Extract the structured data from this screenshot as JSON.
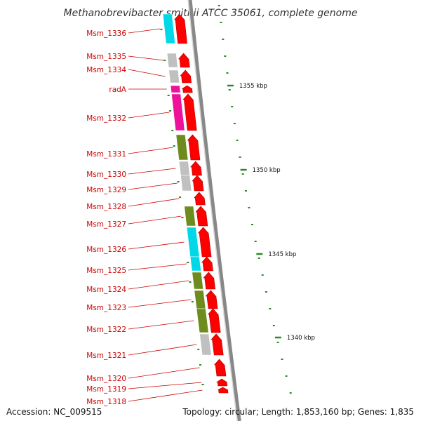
{
  "title": "Methanobrevibacter smithii ATCC 35061, complete genome",
  "accession_text": "Accession: NC_009515",
  "topology_text": "Topology: circular; Length: 1,853,160 bp; Genes: 1,835",
  "colors": {
    "forward": "#ff0000",
    "cyan": "#00d8e8",
    "gray": "#c0c0c0",
    "magenta": "#ee1199",
    "olive": "#6e8b1e",
    "label": "#cc0000",
    "backbone": "#888888",
    "tick": "#2a8a2a"
  },
  "ticks": [
    {
      "label": "1355 kbp",
      "kbp": 1355
    },
    {
      "label": "1350 kbp",
      "kbp": 1350
    },
    {
      "label": "1345 kbp",
      "kbp": 1345
    },
    {
      "label": "1340 kbp",
      "kbp": 1340
    }
  ],
  "genes": [
    {
      "name": "Msm_1336",
      "cat": "cyan"
    },
    {
      "name": "Msm_1335",
      "cat": "gray"
    },
    {
      "name": "Msm_1334",
      "cat": "gray"
    },
    {
      "name": "radA",
      "cat": "magenta"
    },
    {
      "name": "Msm_1332",
      "cat": "magenta"
    },
    {
      "name": "Msm_1331",
      "cat": "olive"
    },
    {
      "name": "Msm_1330",
      "cat": "gray"
    },
    {
      "name": "Msm_1329",
      "cat": "gray"
    },
    {
      "name": "Msm_1328",
      "cat": "none"
    },
    {
      "name": "Msm_1327",
      "cat": "olive"
    },
    {
      "name": "Msm_1326",
      "cat": "cyan"
    },
    {
      "name": "Msm_1325",
      "cat": "cyan"
    },
    {
      "name": "Msm_1324",
      "cat": "olive"
    },
    {
      "name": "Msm_1323",
      "cat": "olive"
    },
    {
      "name": "Msm_1322",
      "cat": "olive"
    },
    {
      "name": "Msm_1321",
      "cat": "gray"
    },
    {
      "name": "Msm_1320",
      "cat": "none"
    },
    {
      "name": "Msm_1319",
      "cat": "none"
    },
    {
      "name": "Msm_1318",
      "cat": "none"
    }
  ]
}
